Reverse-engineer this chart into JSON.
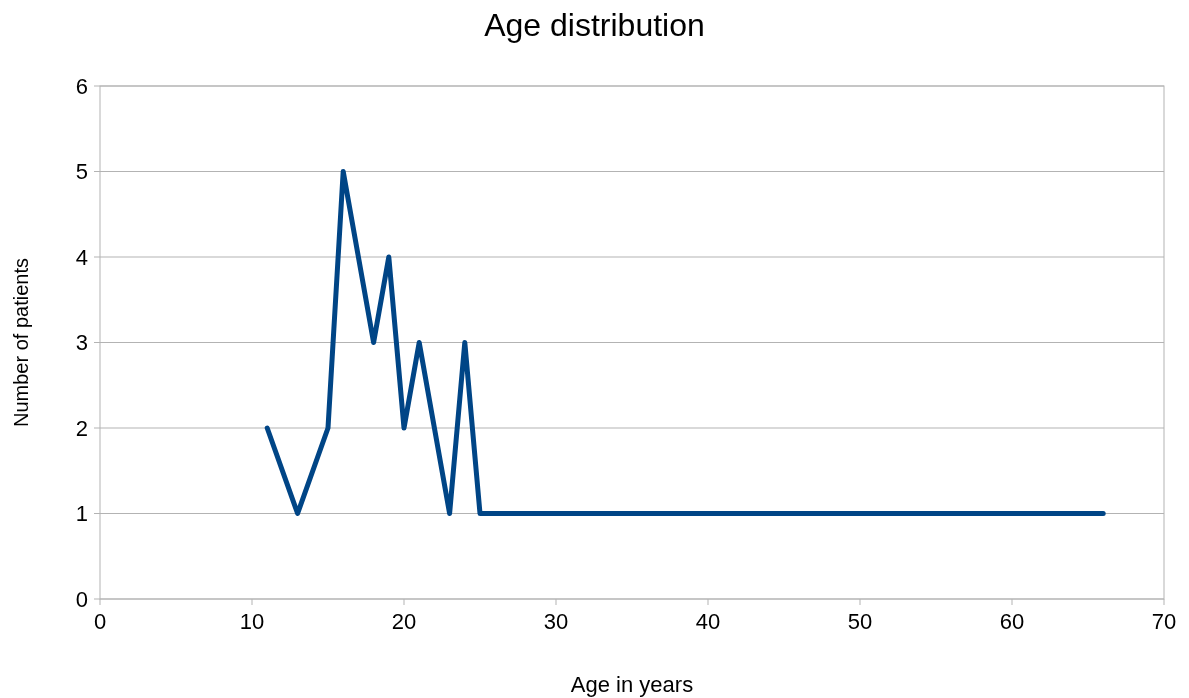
{
  "chart_data": {
    "type": "line",
    "title": "Age distribution",
    "xlabel": "Age in years",
    "ylabel": "Number of patients",
    "x": [
      11,
      13,
      15,
      16,
      18,
      19,
      20,
      21,
      23,
      24,
      25,
      66
    ],
    "series": [
      {
        "color": "#004586",
        "values": [
          2,
          1,
          2,
          5,
          3,
          4,
          2,
          3,
          1,
          3,
          1,
          1
        ]
      }
    ],
    "xlim": [
      0,
      70
    ],
    "xticks": [
      0,
      10,
      20,
      30,
      40,
      50,
      60,
      70
    ],
    "ylim": [
      0,
      6
    ],
    "yticks": [
      0,
      1,
      2,
      3,
      4,
      5,
      6
    ],
    "grid": "y",
    "marker": "none",
    "line_style": "solid"
  }
}
